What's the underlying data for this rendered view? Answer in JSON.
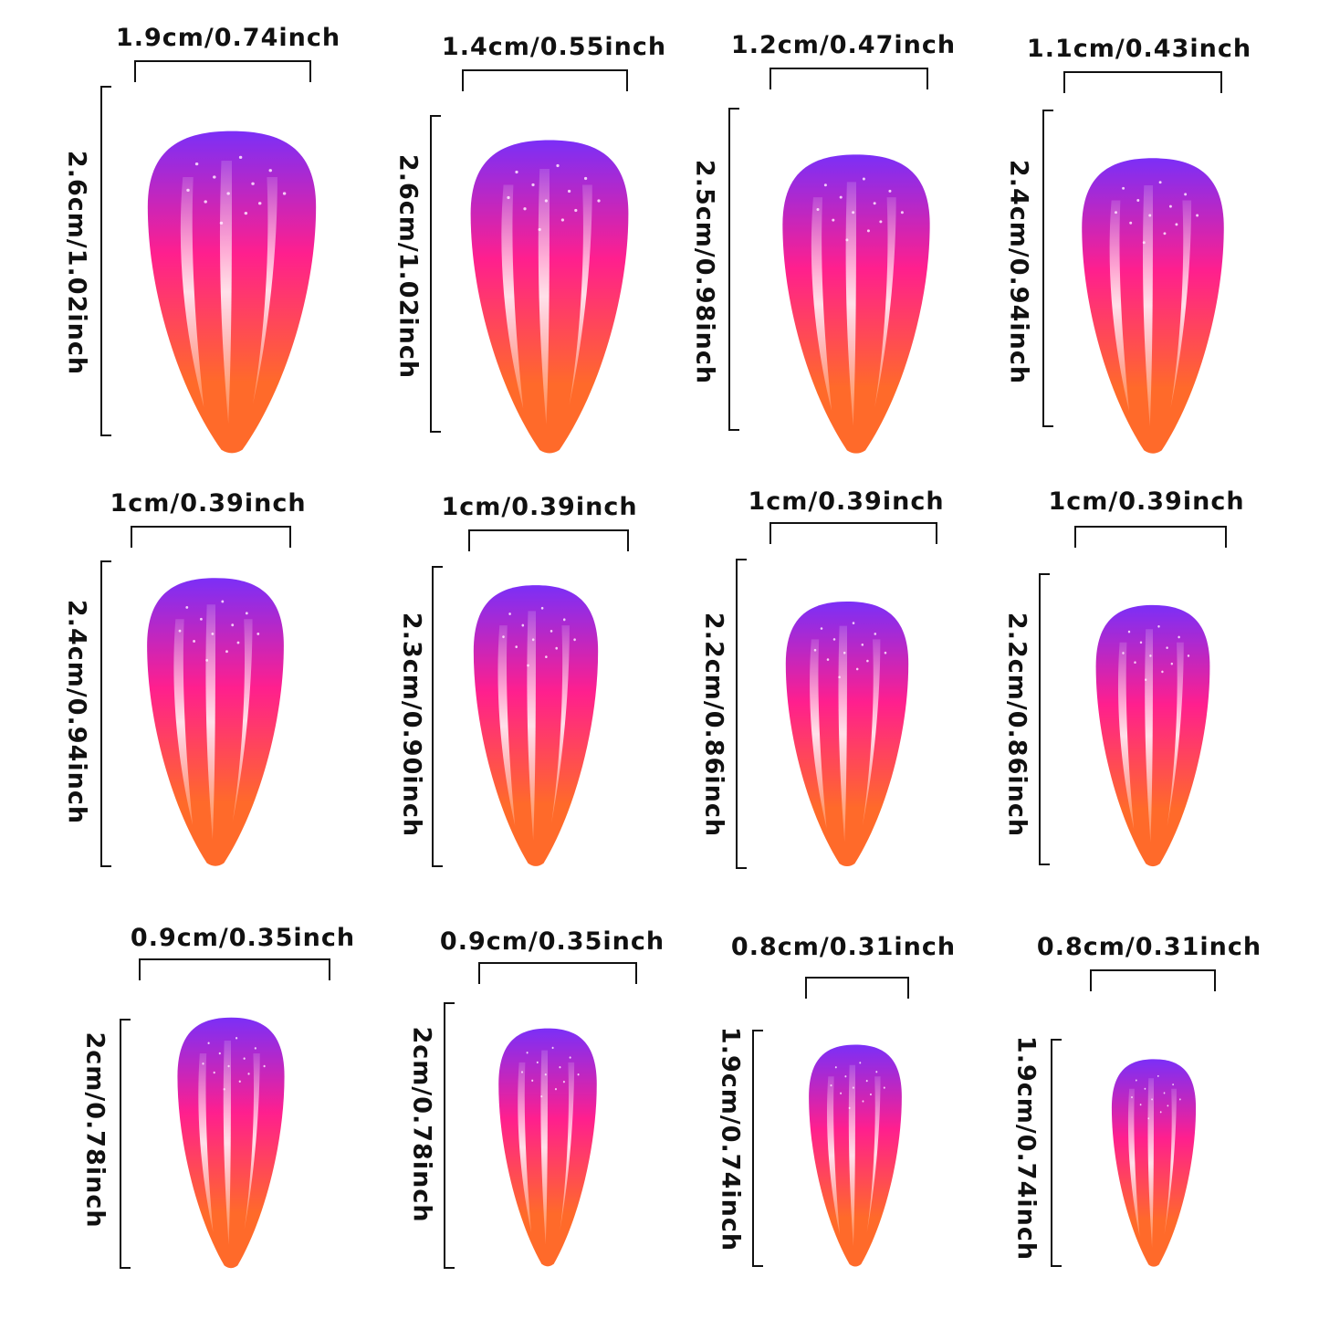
{
  "nails": [
    {
      "width_label": "1.9cm/0.74inch",
      "height_label": "2.6cm/1.02inch"
    },
    {
      "width_label": "1.4cm/0.55inch",
      "height_label": "2.6cm/1.02inch"
    },
    {
      "width_label": "1.2cm/0.47inch",
      "height_label": "2.5cm/0.98inch"
    },
    {
      "width_label": "1.1cm/0.43inch",
      "height_label": "2.4cm/0.94inch"
    },
    {
      "width_label": "1cm/0.39inch",
      "height_label": "2.4cm/0.94inch"
    },
    {
      "width_label": "1cm/0.39inch",
      "height_label": "2.3cm/0.90inch"
    },
    {
      "width_label": "1cm/0.39inch",
      "height_label": "2.2cm/0.86inch"
    },
    {
      "width_label": "1cm/0.39inch",
      "height_label": "2.2cm/0.86inch"
    },
    {
      "width_label": "0.9cm/0.35inch",
      "height_label": "2cm/0.78inch"
    },
    {
      "width_label": "0.9cm/0.35inch",
      "height_label": "2cm/0.78inch"
    },
    {
      "width_label": "0.8cm/0.31inch",
      "height_label": "1.9cm/0.74inch"
    },
    {
      "width_label": "0.8cm/0.31inch",
      "height_label": "1.9cm/0.74inch"
    }
  ],
  "colors": {
    "top": "#7b2ff7",
    "middle": "#ff1f8e",
    "bottom": "#ff6a2a",
    "ink": "#111111"
  }
}
